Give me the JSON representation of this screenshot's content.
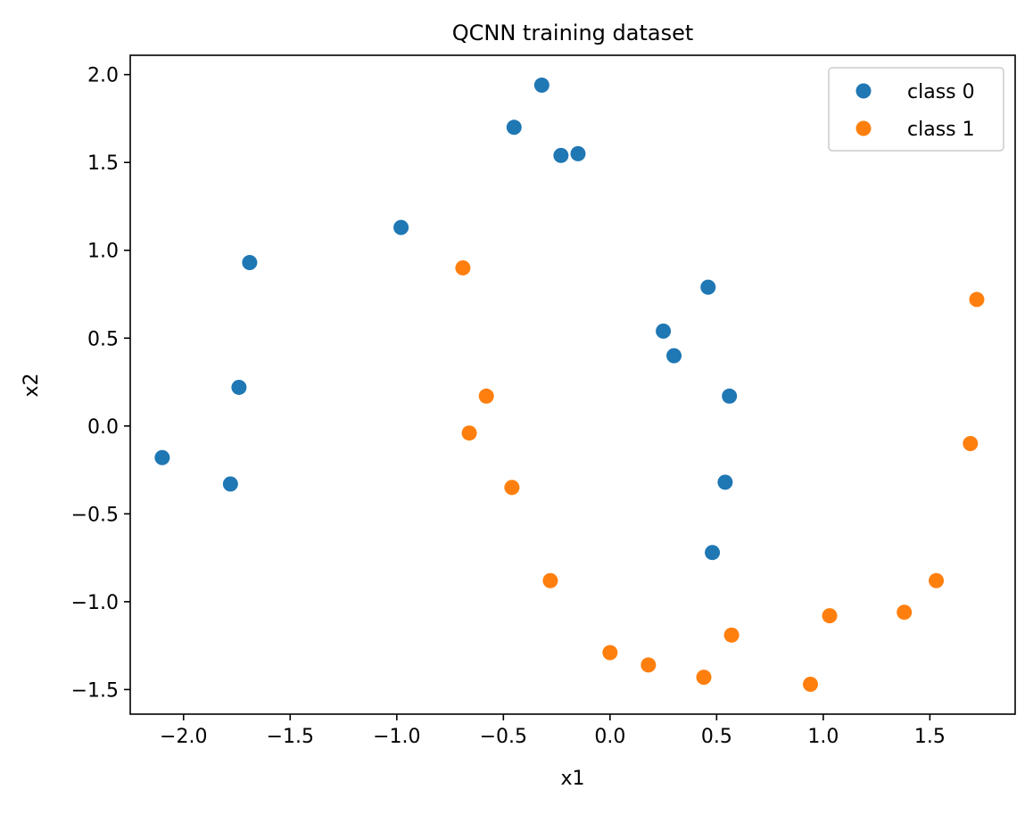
{
  "chart_data": {
    "type": "scatter",
    "title": "QCNN training dataset",
    "xlabel": "x1",
    "ylabel": "x2",
    "xlim": [
      -2.25,
      1.9
    ],
    "ylim": [
      -1.64,
      2.11
    ],
    "xticks": [
      -2.0,
      -1.5,
      -1.0,
      -0.5,
      0.0,
      0.5,
      1.0,
      1.5
    ],
    "xtick_labels": [
      "−2.0",
      "−1.5",
      "−1.0",
      "−0.5",
      "0.0",
      "0.5",
      "1.0",
      "1.5"
    ],
    "yticks": [
      -1.5,
      -1.0,
      -0.5,
      0.0,
      0.5,
      1.0,
      1.5,
      2.0
    ],
    "ytick_labels": [
      "−1.5",
      "−1.0",
      "−0.5",
      "0.0",
      "0.5",
      "1.0",
      "1.5",
      "2.0"
    ],
    "grid": false,
    "legend_position": "top-right",
    "series": [
      {
        "name": "class 0",
        "color": "#1f77b4",
        "x": [
          -0.32,
          -0.45,
          -0.23,
          -0.15,
          -0.98,
          -1.69,
          0.46,
          0.25,
          0.3,
          0.56,
          -1.74,
          -2.1,
          -1.78,
          0.54,
          0.48
        ],
        "y": [
          1.94,
          1.7,
          1.54,
          1.55,
          1.13,
          0.93,
          0.79,
          0.54,
          0.4,
          0.17,
          0.22,
          -0.18,
          -0.33,
          -0.32,
          -0.72
        ]
      },
      {
        "name": "class 1",
        "color": "#ff7f0e",
        "x": [
          -0.69,
          -0.58,
          -0.66,
          -0.46,
          -0.28,
          0.0,
          0.18,
          0.44,
          0.57,
          0.94,
          1.03,
          1.38,
          1.53,
          1.69,
          1.72
        ],
        "y": [
          0.9,
          0.17,
          -0.04,
          -0.35,
          -0.88,
          -1.29,
          -1.36,
          -1.43,
          -1.19,
          -1.47,
          -1.08,
          -1.06,
          -0.88,
          -0.1,
          0.72
        ]
      }
    ]
  }
}
